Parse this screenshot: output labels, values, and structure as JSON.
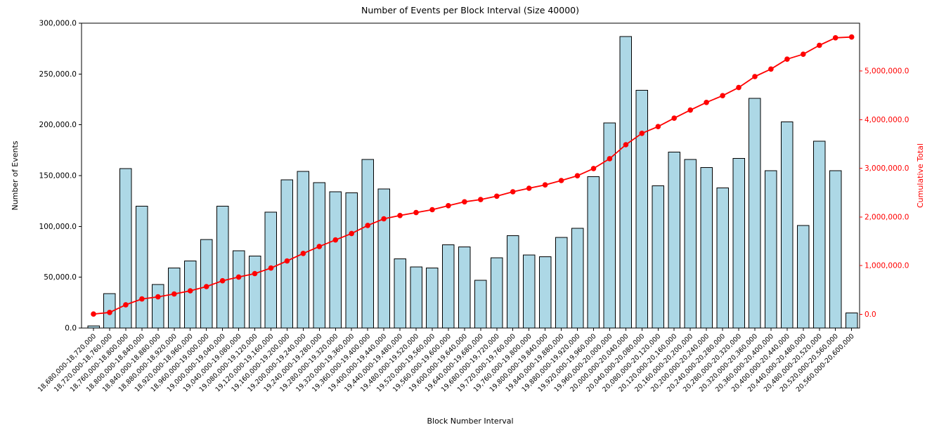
{
  "chart_data": {
    "type": "bar",
    "title": "Number of Events per Block Interval (Size 40000)",
    "xlabel": "Block Number Interval",
    "ylabel": "Number of Events",
    "ylabel_right": "Cumulative Total",
    "grid": false,
    "legend_position": "none",
    "ylim_left": [
      0,
      300000
    ],
    "ytick_values_left": [
      0,
      50000,
      100000,
      150000,
      200000,
      250000,
      300000
    ],
    "ytick_labels_left": [
      "0.0",
      "50,000.0",
      "100,000.0",
      "150,000.0",
      "200,000.0",
      "250,000.0",
      "300,000.0"
    ],
    "ylim_right": [
      -285000,
      5985000
    ],
    "ytick_values_right": [
      0,
      1000000,
      2000000,
      3000000,
      4000000,
      5000000
    ],
    "ytick_labels_right": [
      "0.0",
      "1,000,000.0",
      "2,000,000.0",
      "3,000,000.0",
      "4,000,000.0",
      "5,000,000.0"
    ],
    "categories": [
      "18,680,000-18,720,000",
      "18,720,000-18,760,000",
      "18,760,000-18,800,000",
      "18,800,000-18,840,000",
      "18,840,000-18,880,000",
      "18,880,000-18,920,000",
      "18,920,000-18,960,000",
      "18,960,000-19,000,000",
      "19,000,000-19,040,000",
      "19,040,000-19,080,000",
      "19,080,000-19,120,000",
      "19,120,000-19,160,000",
      "19,160,000-19,200,000",
      "19,200,000-19,240,000",
      "19,240,000-19,280,000",
      "19,280,000-19,320,000",
      "19,320,000-19,360,000",
      "19,360,000-19,400,000",
      "19,400,000-19,440,000",
      "19,440,000-19,480,000",
      "19,480,000-19,520,000",
      "19,520,000-19,560,000",
      "19,560,000-19,600,000",
      "19,600,000-19,640,000",
      "19,640,000-19,680,000",
      "19,680,000-19,720,000",
      "19,720,000-19,760,000",
      "19,760,000-19,800,000",
      "19,800,000-19,840,000",
      "19,840,000-19,880,000",
      "19,880,000-19,920,000",
      "19,920,000-19,960,000",
      "19,960,000-20,000,000",
      "20,000,000-20,040,000",
      "20,040,000-20,080,000",
      "20,080,000-20,120,000",
      "20,120,000-20,160,000",
      "20,160,000-20,200,000",
      "20,200,000-20,240,000",
      "20,240,000-20,280,000",
      "20,280,000-20,320,000",
      "20,320,000-20,360,000",
      "20,360,000-20,400,000",
      "20,400,000-20,440,000",
      "20,440,000-20,480,000",
      "20,480,000-20,520,000",
      "20,520,000-20,560,000",
      "20,560,000-20,600,000"
    ],
    "series": [
      {
        "name": "Number of Events",
        "type": "bar",
        "color": "#ADD8E6",
        "edge_color": "#000000",
        "values": [
          2000,
          34000,
          157000,
          120000,
          43000,
          59000,
          66000,
          87000,
          120000,
          76000,
          71000,
          114000,
          146000,
          154000,
          143000,
          134000,
          133000,
          166000,
          137000,
          68000,
          60000,
          59000,
          82000,
          80000,
          47000,
          69000,
          91000,
          72000,
          70000,
          89000,
          98000,
          149000,
          202000,
          287000,
          234000,
          140000,
          173000,
          166000,
          158000,
          138000,
          167000,
          226000,
          155000,
          203000,
          101000,
          184000,
          155000,
          15000
        ]
      },
      {
        "name": "Cumulative Total",
        "type": "line",
        "color": "#FF0000",
        "marker": "circle",
        "values": [
          2000,
          36000,
          193000,
          313000,
          356000,
          415000,
          481000,
          568000,
          688000,
          764000,
          835000,
          949000,
          1095000,
          1249000,
          1392000,
          1526000,
          1659000,
          1825000,
          1962000,
          2030000,
          2090000,
          2149000,
          2231000,
          2311000,
          2358000,
          2427000,
          2518000,
          2590000,
          2660000,
          2749000,
          2847000,
          2996000,
          3198000,
          3485000,
          3719000,
          3859000,
          4032000,
          4198000,
          4356000,
          4494000,
          4661000,
          4887000,
          5042000,
          5245000,
          5346000,
          5530000,
          5685000,
          5700000
        ]
      }
    ],
    "colors": {
      "background": "#FFFFFF",
      "bar_fill": "#ADD8E6",
      "bar_edge": "#000000",
      "line": "#FF0000",
      "axis": "#000000",
      "right_axis_text": "#FF0000"
    }
  }
}
